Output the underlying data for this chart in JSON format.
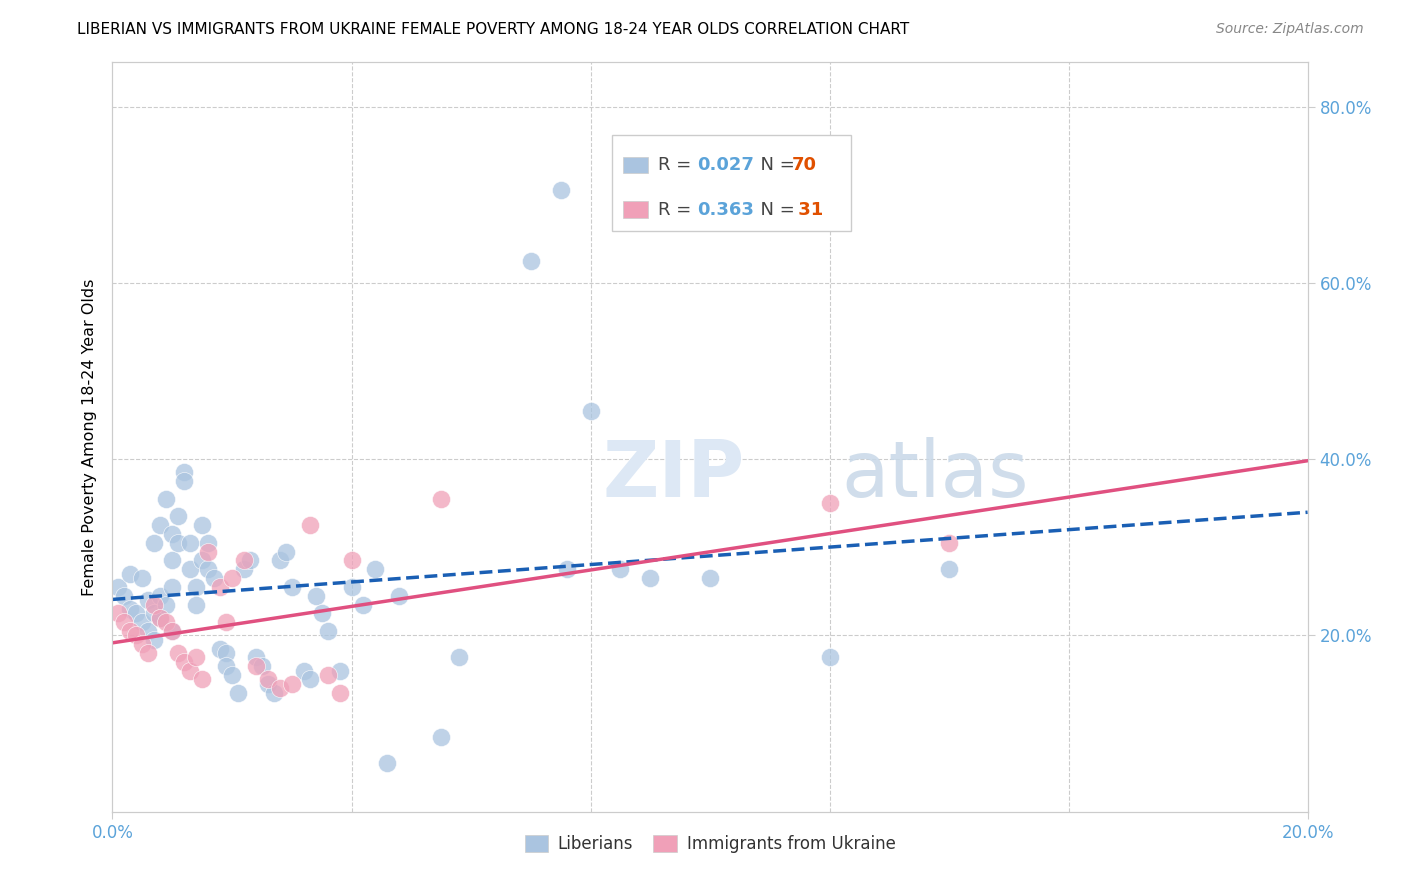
{
  "title": "LIBERIAN VS IMMIGRANTS FROM UKRAINE FEMALE POVERTY AMONG 18-24 YEAR OLDS CORRELATION CHART",
  "source": "Source: ZipAtlas.com",
  "ylabel": "Female Poverty Among 18-24 Year Olds",
  "xlim": [
    0.0,
    0.2
  ],
  "ylim": [
    0.0,
    0.85
  ],
  "yticks": [
    0.2,
    0.4,
    0.6,
    0.8
  ],
  "ytick_labels": [
    "20.0%",
    "40.0%",
    "60.0%",
    "80.0%"
  ],
  "xticks": [
    0.0,
    0.2
  ],
  "xtick_labels": [
    "0.0%",
    "20.0%"
  ],
  "liberian_color": "#aac4e0",
  "ukraine_color": "#f0a0b8",
  "liberian_line_color": "#1a5fb4",
  "ukraine_line_color": "#e05080",
  "right_tick_color": "#5ba3d9",
  "watermark_color": "#dde8f5",
  "legend_R1": "0.027",
  "legend_N1": "70",
  "legend_R2": "0.363",
  "legend_N2": "31",
  "liberian_x": [
    0.001,
    0.002,
    0.003,
    0.003,
    0.004,
    0.005,
    0.005,
    0.006,
    0.006,
    0.007,
    0.007,
    0.007,
    0.008,
    0.008,
    0.008,
    0.009,
    0.009,
    0.01,
    0.01,
    0.01,
    0.01,
    0.011,
    0.011,
    0.012,
    0.012,
    0.013,
    0.013,
    0.014,
    0.014,
    0.015,
    0.015,
    0.016,
    0.016,
    0.017,
    0.018,
    0.019,
    0.019,
    0.02,
    0.021,
    0.022,
    0.023,
    0.024,
    0.025,
    0.026,
    0.027,
    0.028,
    0.029,
    0.03,
    0.032,
    0.033,
    0.034,
    0.035,
    0.036,
    0.038,
    0.04,
    0.042,
    0.044,
    0.046,
    0.048,
    0.055,
    0.058,
    0.07,
    0.075,
    0.076,
    0.08,
    0.085,
    0.09,
    0.1,
    0.12,
    0.14
  ],
  "liberian_y": [
    0.255,
    0.245,
    0.23,
    0.27,
    0.225,
    0.215,
    0.265,
    0.205,
    0.24,
    0.195,
    0.225,
    0.305,
    0.245,
    0.22,
    0.325,
    0.235,
    0.355,
    0.315,
    0.285,
    0.255,
    0.205,
    0.335,
    0.305,
    0.385,
    0.375,
    0.305,
    0.275,
    0.255,
    0.235,
    0.325,
    0.285,
    0.305,
    0.275,
    0.265,
    0.185,
    0.18,
    0.165,
    0.155,
    0.135,
    0.275,
    0.285,
    0.175,
    0.165,
    0.145,
    0.135,
    0.285,
    0.295,
    0.255,
    0.16,
    0.15,
    0.245,
    0.225,
    0.205,
    0.16,
    0.255,
    0.235,
    0.275,
    0.055,
    0.245,
    0.085,
    0.175,
    0.625,
    0.705,
    0.275,
    0.455,
    0.275,
    0.265,
    0.265,
    0.175,
    0.275
  ],
  "ukraine_x": [
    0.001,
    0.002,
    0.003,
    0.004,
    0.005,
    0.006,
    0.007,
    0.008,
    0.009,
    0.01,
    0.011,
    0.012,
    0.013,
    0.014,
    0.015,
    0.016,
    0.018,
    0.019,
    0.02,
    0.022,
    0.024,
    0.026,
    0.028,
    0.03,
    0.033,
    0.036,
    0.038,
    0.04,
    0.055,
    0.12,
    0.14
  ],
  "ukraine_y": [
    0.225,
    0.215,
    0.205,
    0.2,
    0.19,
    0.18,
    0.235,
    0.22,
    0.215,
    0.205,
    0.18,
    0.17,
    0.16,
    0.175,
    0.15,
    0.295,
    0.255,
    0.215,
    0.265,
    0.285,
    0.165,
    0.15,
    0.14,
    0.145,
    0.325,
    0.155,
    0.135,
    0.285,
    0.355,
    0.35,
    0.305
  ]
}
